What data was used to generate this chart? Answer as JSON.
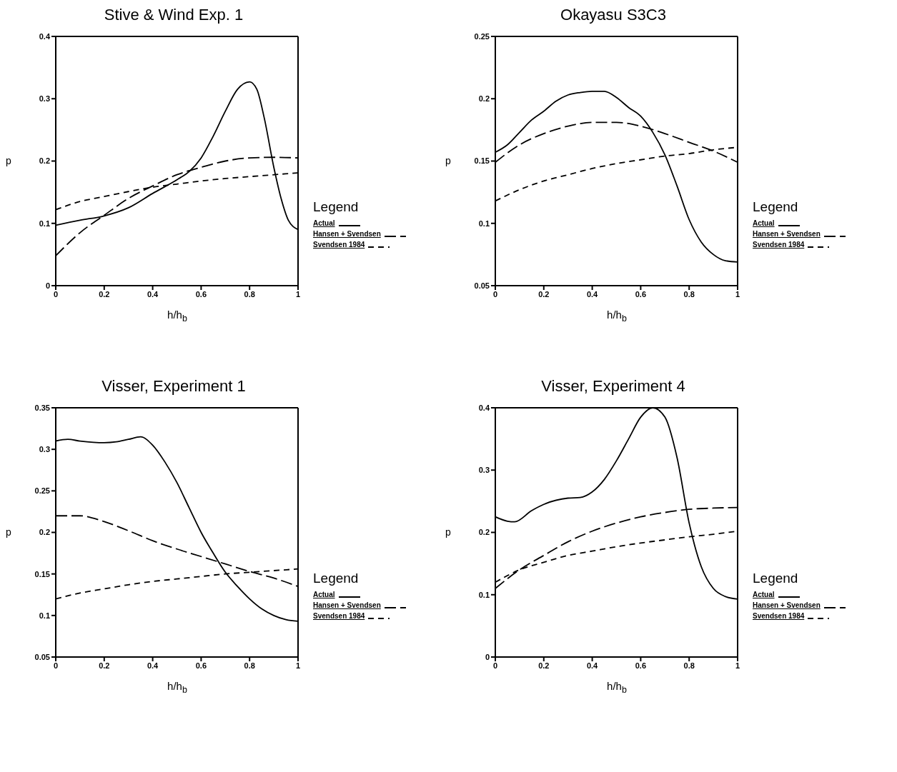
{
  "chart_data": [
    {
      "type": "line",
      "title": "Stive & Wind Exp. 1",
      "xlabel": "h/h$_{b}$",
      "ylabel": "p",
      "legend_title": "Legend",
      "legend": "right",
      "xlim": [
        0,
        1
      ],
      "xticks": [
        0,
        0.2,
        0.4,
        0.6,
        0.8,
        1
      ],
      "ylim": [
        0,
        0.4
      ],
      "yticks": [
        0,
        0.1,
        0.2,
        0.3,
        0.4
      ],
      "series": [
        {
          "name": "Actual",
          "color": "#000000",
          "line_style": "solid",
          "x": [
            0,
            0.1,
            0.2,
            0.3,
            0.4,
            0.5,
            0.55,
            0.6,
            0.65,
            0.7,
            0.75,
            0.8,
            0.83,
            0.86,
            0.9,
            0.93,
            0.96,
            1
          ],
          "values": [
            0.097,
            0.105,
            0.112,
            0.125,
            0.148,
            0.17,
            0.183,
            0.205,
            0.24,
            0.28,
            0.315,
            0.327,
            0.315,
            0.27,
            0.19,
            0.14,
            0.105,
            0.09
          ]
        },
        {
          "name": "Hansen + Svendsen",
          "color": "#000000",
          "line_style": "dashed",
          "x": [
            0,
            0.1,
            0.2,
            0.3,
            0.4,
            0.5,
            0.6,
            0.7,
            0.8,
            0.9,
            1
          ],
          "values": [
            0.048,
            0.085,
            0.113,
            0.14,
            0.16,
            0.178,
            0.19,
            0.2,
            0.205,
            0.206,
            0.205
          ]
        },
        {
          "name": "Svendsen 1984",
          "color": "#000000",
          "line_style": "dashed",
          "x": [
            0,
            0.1,
            0.2,
            0.3,
            0.4,
            0.5,
            0.6,
            0.7,
            0.8,
            0.9,
            1
          ],
          "values": [
            0.122,
            0.135,
            0.143,
            0.151,
            0.158,
            0.163,
            0.168,
            0.172,
            0.175,
            0.178,
            0.181
          ]
        }
      ]
    },
    {
      "type": "line",
      "title": "Okayasu S3C3",
      "xlabel": "h/h$_{b}$",
      "ylabel": "p",
      "legend_title": "Legend",
      "legend": "right",
      "xlim": [
        0,
        1
      ],
      "xticks": [
        0,
        0.2,
        0.4,
        0.6,
        0.8,
        1
      ],
      "ylim": [
        0.05,
        0.25
      ],
      "yticks": [
        0.05,
        0.1,
        0.15,
        0.2,
        0.25
      ],
      "series": [
        {
          "name": "Actual",
          "color": "#000000",
          "line_style": "solid",
          "x": [
            0,
            0.05,
            0.1,
            0.15,
            0.2,
            0.25,
            0.3,
            0.35,
            0.4,
            0.45,
            0.5,
            0.55,
            0.6,
            0.65,
            0.7,
            0.75,
            0.8,
            0.85,
            0.9,
            0.95,
            1
          ],
          "values": [
            0.157,
            0.163,
            0.173,
            0.183,
            0.19,
            0.198,
            0.203,
            0.205,
            0.206,
            0.206,
            0.201,
            0.193,
            0.186,
            0.173,
            0.155,
            0.13,
            0.103,
            0.085,
            0.075,
            0.07,
            0.069
          ]
        },
        {
          "name": "Hansen + Svendsen",
          "color": "#000000",
          "line_style": "dashed",
          "x": [
            0,
            0.1,
            0.2,
            0.3,
            0.4,
            0.5,
            0.6,
            0.7,
            0.8,
            0.9,
            1
          ],
          "values": [
            0.149,
            0.163,
            0.172,
            0.178,
            0.181,
            0.181,
            0.178,
            0.172,
            0.165,
            0.158,
            0.149
          ]
        },
        {
          "name": "Svendsen 1984",
          "color": "#000000",
          "line_style": "dashed",
          "x": [
            0,
            0.1,
            0.2,
            0.3,
            0.4,
            0.5,
            0.6,
            0.7,
            0.8,
            0.9,
            1
          ],
          "values": [
            0.118,
            0.127,
            0.134,
            0.139,
            0.144,
            0.148,
            0.151,
            0.154,
            0.156,
            0.159,
            0.161
          ]
        }
      ]
    },
    {
      "type": "line",
      "title": "Visser, Experiment 1",
      "xlabel": "h/h$_{b}$",
      "ylabel": "p",
      "legend_title": "Legend",
      "legend": "right",
      "xlim": [
        0,
        1
      ],
      "xticks": [
        0,
        0.2,
        0.4,
        0.6,
        0.8,
        1
      ],
      "ylim": [
        0.05,
        0.35
      ],
      "yticks": [
        0.05,
        0.1,
        0.15,
        0.2,
        0.25,
        0.3,
        0.35
      ],
      "series": [
        {
          "name": "Actual",
          "color": "#000000",
          "line_style": "solid",
          "x": [
            0,
            0.05,
            0.1,
            0.2,
            0.25,
            0.3,
            0.35,
            0.4,
            0.45,
            0.5,
            0.55,
            0.6,
            0.65,
            0.7,
            0.75,
            0.8,
            0.85,
            0.9,
            0.95,
            1
          ],
          "values": [
            0.31,
            0.312,
            0.31,
            0.308,
            0.309,
            0.312,
            0.315,
            0.305,
            0.285,
            0.26,
            0.23,
            0.2,
            0.175,
            0.152,
            0.135,
            0.12,
            0.108,
            0.1,
            0.095,
            0.093
          ]
        },
        {
          "name": "Hansen + Svendsen",
          "color": "#000000",
          "line_style": "dashed",
          "x": [
            0,
            0.1,
            0.2,
            0.3,
            0.4,
            0.5,
            0.6,
            0.7,
            0.8,
            0.9,
            1
          ],
          "values": [
            0.22,
            0.22,
            0.213,
            0.202,
            0.19,
            0.18,
            0.171,
            0.162,
            0.153,
            0.145,
            0.135
          ]
        },
        {
          "name": "Svendsen 1984",
          "color": "#000000",
          "line_style": "dashed",
          "x": [
            0,
            0.1,
            0.2,
            0.3,
            0.4,
            0.5,
            0.6,
            0.7,
            0.8,
            0.9,
            1
          ],
          "values": [
            0.12,
            0.127,
            0.132,
            0.137,
            0.141,
            0.144,
            0.147,
            0.15,
            0.152,
            0.154,
            0.156
          ]
        }
      ]
    },
    {
      "type": "line",
      "title": "Visser, Experiment 4",
      "xlabel": "h/h$_{b}$",
      "ylabel": "p",
      "legend_title": "Legend",
      "legend": "right",
      "xlim": [
        0,
        1
      ],
      "xticks": [
        0,
        0.2,
        0.4,
        0.6,
        0.8,
        1
      ],
      "ylim": [
        0,
        0.4
      ],
      "yticks": [
        0,
        0.1,
        0.2,
        0.3,
        0.4
      ],
      "series": [
        {
          "name": "Actual",
          "color": "#000000",
          "line_style": "solid",
          "x": [
            0,
            0.05,
            0.08,
            0.15,
            0.2,
            0.3,
            0.35,
            0.4,
            0.45,
            0.5,
            0.55,
            0.6,
            0.65,
            0.7,
            0.75,
            0.8,
            0.85,
            0.9,
            0.95,
            1
          ],
          "values": [
            0.225,
            0.218,
            0.217,
            0.235,
            0.245,
            0.255,
            0.256,
            0.265,
            0.285,
            0.315,
            0.35,
            0.385,
            0.4,
            0.385,
            0.32,
            0.215,
            0.145,
            0.11,
            0.097,
            0.093
          ]
        },
        {
          "name": "Hansen + Svendsen",
          "color": "#000000",
          "line_style": "dashed",
          "x": [
            0,
            0.1,
            0.2,
            0.3,
            0.4,
            0.5,
            0.6,
            0.7,
            0.8,
            0.9,
            1
          ],
          "values": [
            0.11,
            0.14,
            0.163,
            0.185,
            0.202,
            0.215,
            0.225,
            0.232,
            0.237,
            0.239,
            0.24
          ]
        },
        {
          "name": "Svendsen 1984",
          "color": "#000000",
          "line_style": "dashed",
          "x": [
            0,
            0.1,
            0.2,
            0.3,
            0.4,
            0.5,
            0.6,
            0.7,
            0.8,
            0.9,
            1
          ],
          "values": [
            0.12,
            0.14,
            0.152,
            0.163,
            0.17,
            0.177,
            0.183,
            0.188,
            0.193,
            0.197,
            0.202
          ]
        }
      ]
    }
  ]
}
